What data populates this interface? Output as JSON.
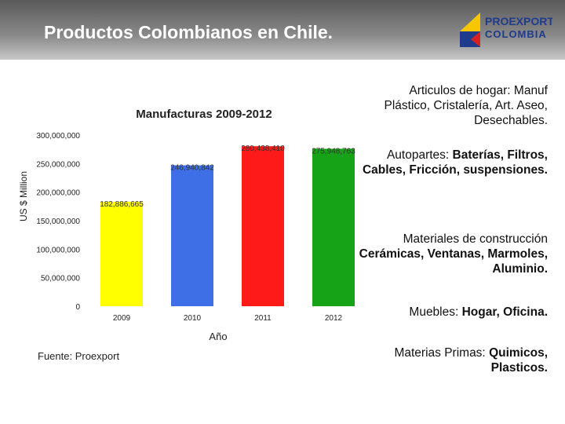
{
  "header": {
    "title": "Productos Colombianos en Chile."
  },
  "logo": {
    "line1": "PROEXPORT",
    "line2": "COLOMBIA"
  },
  "chart_data": {
    "type": "bar",
    "title": "Manufacturas 2009-2012",
    "y_label": "US $ Million",
    "x_label": "Año",
    "categories": [
      "2009",
      "2010",
      "2011",
      "2012"
    ],
    "values": [
      182886665,
      246940842,
      280438410,
      275948763
    ],
    "value_labels": [
      "182,886,665",
      "246,940,842",
      "280,438,410",
      "275,948,763"
    ],
    "colors": [
      "#ffff00",
      "#3f6fe6",
      "#ff1a1a",
      "#17a317"
    ],
    "ylim": [
      0,
      300000000
    ],
    "yticks": [
      0,
      {
        "value": 50000000,
        "label": "50,000,000"
      },
      {
        "value": 100000000,
        "label": "100,000,000"
      },
      {
        "value": 150000000,
        "label": "150,000,000"
      },
      {
        "value": 200000000,
        "label": "200,000,000"
      },
      {
        "value": 250000000,
        "label": "250,000,000"
      },
      {
        "value": 300000000,
        "label": "300,000,000"
      }
    ],
    "grid": false
  },
  "source": "Fuente: Proexport",
  "notes": [
    {
      "lead": "Articulos de hogar:  ",
      "rest": "Manuf Plástico, Cristalería, Art. Aseo, Desechables."
    },
    {
      "lead": "Autopartes: ",
      "rest": "Baterías, Filtros, Cables, Fricción, suspensiones."
    },
    {
      "lead": "Materiales de construcción ",
      "rest": "Cerámicas, Ventanas, Marmoles, Aluminio."
    },
    {
      "lead": "Muebles: ",
      "rest": "Hogar, Oficina."
    },
    {
      "lead": "Materias Primas: ",
      "rest": "Quimicos, Plasticos."
    }
  ]
}
